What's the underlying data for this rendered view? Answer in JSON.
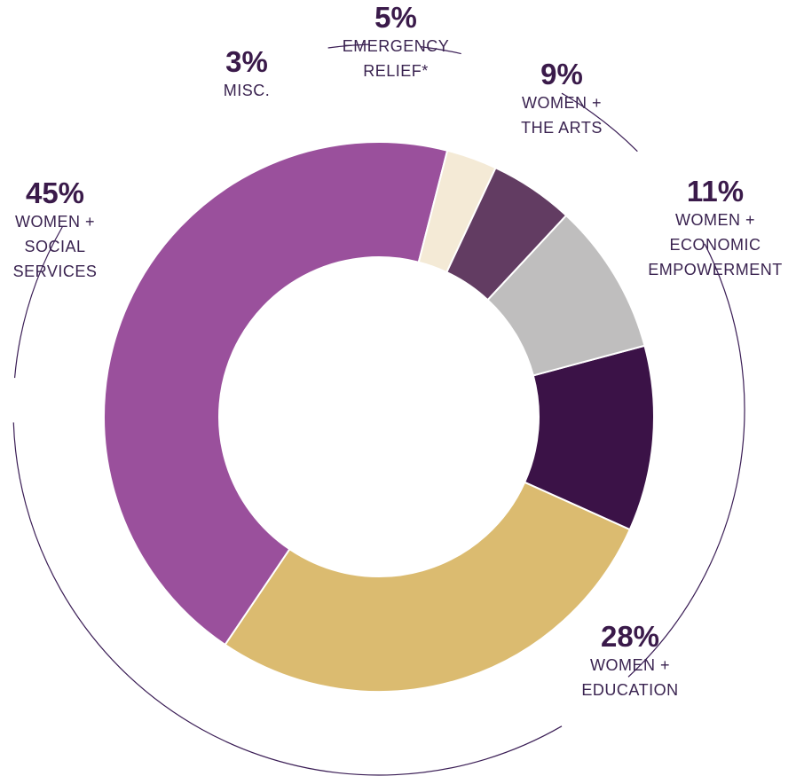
{
  "chart_data": {
    "type": "donut",
    "title": "",
    "slices": [
      {
        "label_lines": [
          "WOMEN +",
          "ECONOMIC",
          "EMPOWERMENT"
        ],
        "percent_label": "11%",
        "value": 11,
        "color": "#3b1247"
      },
      {
        "label_lines": [
          "WOMEN +",
          "EDUCATION"
        ],
        "percent_label": "28%",
        "value": 28,
        "color": "#dbbb70"
      },
      {
        "label_lines": [
          "WOMEN +",
          "SOCIAL",
          "SERVICES"
        ],
        "percent_label": "45%",
        "value": 45,
        "color": "#9a509c"
      },
      {
        "label_lines": [
          "MISC."
        ],
        "percent_label": "3%",
        "value": 3,
        "color": "#f4ead6"
      },
      {
        "label_lines": [
          "EMERGENCY",
          "RELIEF*"
        ],
        "percent_label": "5%",
        "value": 5,
        "color": "#623c62"
      },
      {
        "label_lines": [
          "WOMEN +",
          "THE ARTS"
        ],
        "percent_label": "9%",
        "value": 9,
        "color": "#bfbebe"
      }
    ],
    "legend": "none (labels placed around the ring)"
  }
}
